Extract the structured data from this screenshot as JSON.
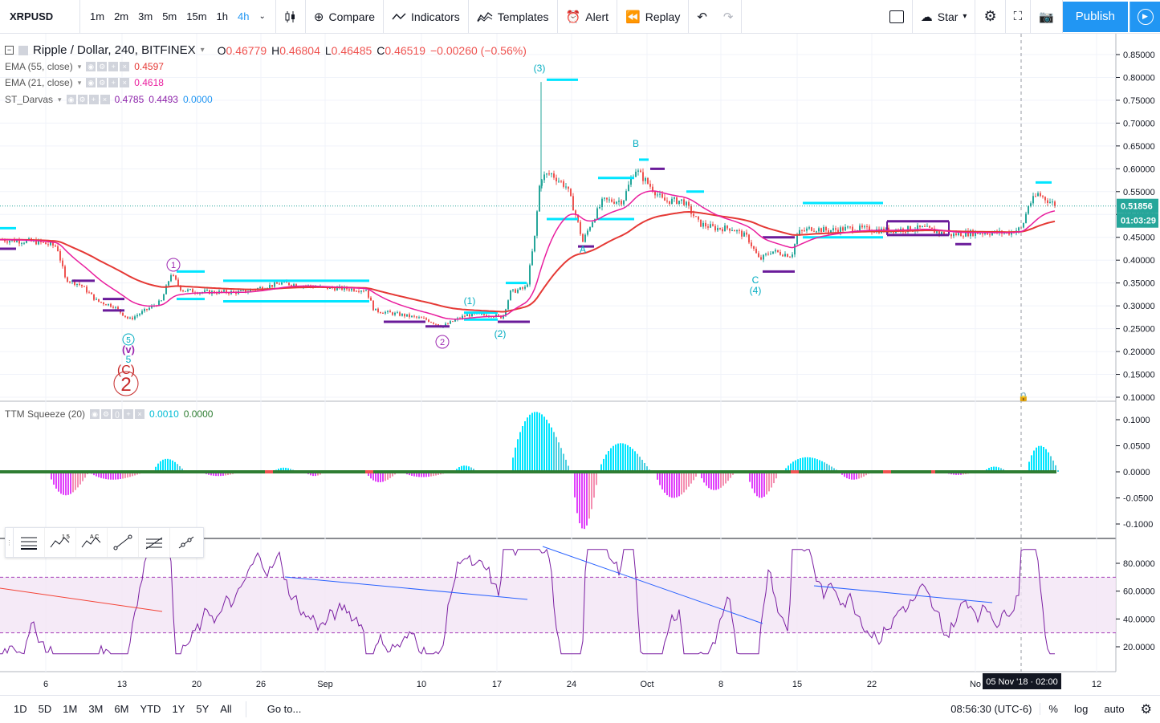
{
  "header": {
    "symbol": "XRPUSD",
    "intervals": [
      "1m",
      "2m",
      "3m",
      "5m",
      "15m",
      "1h",
      "4h"
    ],
    "active_interval": "4h",
    "compare": "Compare",
    "indicators": "Indicators",
    "templates": "Templates",
    "alert": "Alert",
    "replay": "Replay",
    "star": "Star",
    "publish": "Publish"
  },
  "legend": {
    "title": "Ripple / Dollar, 240, BITFINEX",
    "o_label": "O",
    "o": "0.46779",
    "h_label": "H",
    "h": "0.46804",
    "l_label": "L",
    "l": "0.46485",
    "c_label": "C",
    "c": "0.46519",
    "change": "−0.00260 (−0.56%)",
    "ema55": {
      "name": "EMA (55, close)",
      "value": "0.4597",
      "color": "#e53935"
    },
    "ema21": {
      "name": "EMA (21, close)",
      "value": "0.4618",
      "color": "#e91e9e"
    },
    "darvas": {
      "name": "ST_Darvas",
      "v1": "0.4785",
      "v2": "0.4493",
      "v3": "0.0000"
    },
    "ttm": {
      "name": "TTM Squeeze (20)",
      "v1": "0.0010",
      "v2": "0.0000"
    }
  },
  "price_axis": {
    "labels": [
      "0.85000",
      "0.80000",
      "0.75000",
      "0.70000",
      "0.65000",
      "0.60000",
      "0.55000",
      "0.50000",
      "0.45000",
      "0.40000",
      "0.35000",
      "0.30000",
      "0.25000",
      "0.20000",
      "0.15000",
      "0.10000"
    ],
    "current_price": "0.51856",
    "countdown": "01:03:29"
  },
  "ttm_axis": {
    "labels": [
      "0.1000",
      "0.0500",
      "0.0000",
      "-0.0500",
      "-0.1000"
    ]
  },
  "rsi_axis": {
    "labels": [
      "80.0000",
      "60.0000",
      "40.0000",
      "20.0000"
    ]
  },
  "time_axis": {
    "labels": [
      "6",
      "13",
      "20",
      "26",
      "Sep",
      "10",
      "17",
      "24",
      "Oct",
      "8",
      "15",
      "22",
      "No",
      "12"
    ],
    "crosshair_label": "05 Nov '18 · 02:00"
  },
  "wave_labels": {
    "w3": "(3)",
    "wB": "B",
    "wA": "A",
    "wC": "C",
    "w4": "(4)",
    "w1": "(1)",
    "w2p": "(2)",
    "c1": "1",
    "c2": "2",
    "c5": "5",
    "v": "(v)",
    "c5b": "5",
    "cC": "(C)",
    "big2": "2"
  },
  "bottom": {
    "ranges": [
      "1D",
      "5D",
      "1M",
      "3M",
      "6M",
      "YTD",
      "1Y",
      "5Y",
      "All"
    ],
    "goto": "Go to...",
    "time": "08:56:30 (UTC-6)",
    "percent": "%",
    "log": "log",
    "auto": "auto"
  },
  "chart_data": {
    "type": "line",
    "title": "Ripple / Dollar, 240, BITFINEX",
    "x": [
      "6",
      "13",
      "20",
      "26",
      "Sep",
      "10",
      "17",
      "24",
      "Oct",
      "8",
      "15",
      "22",
      "Nov"
    ],
    "series": [
      {
        "name": "EMA (55, close)",
        "values": [
          0.44,
          0.3,
          0.33,
          0.33,
          0.34,
          0.28,
          0.28,
          0.45,
          0.53,
          0.48,
          0.42,
          0.46,
          0.46
        ]
      },
      {
        "name": "EMA (21, close)",
        "values": [
          0.44,
          0.29,
          0.33,
          0.33,
          0.34,
          0.27,
          0.29,
          0.5,
          0.55,
          0.46,
          0.43,
          0.47,
          0.46
        ]
      }
    ],
    "ylim": [
      0.1,
      0.85
    ]
  },
  "colors": {
    "accent": "#2196f3",
    "up": "#26a69a",
    "down": "#ef5350",
    "ema55": "#e53935",
    "ema21": "#e91e9e",
    "darvas_top": "#00e5ff",
    "darvas_bottom": "#6a1b9a"
  }
}
